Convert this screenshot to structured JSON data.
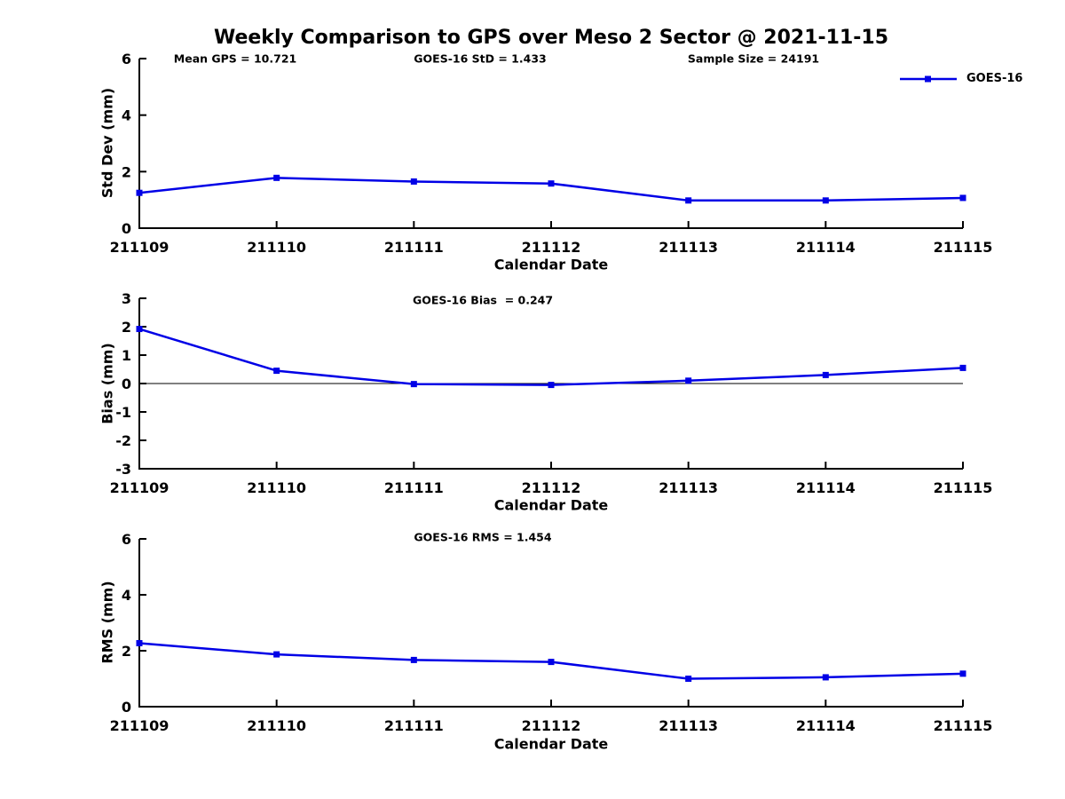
{
  "page_title": "Weekly Comparison to GPS over Meso 2 Sector @ 2021-11-15",
  "colors": {
    "series": "#0000E6",
    "axis": "#000000",
    "text": "#000000",
    "background": "#FFFFFF"
  },
  "legend": {
    "label": "GOES-16",
    "position": "top-right",
    "marker": "square"
  },
  "chart_data": [
    {
      "type": "line",
      "ylabel": "Std Dev (mm)",
      "xlabel": "Calendar Date",
      "ylim": [
        0,
        6
      ],
      "yticks": [
        0,
        2,
        4,
        6
      ],
      "grid": false,
      "zero_line": false,
      "annotations": [
        "Mean GPS = 10.721",
        "GOES-16 StD = 1.433",
        "Sample Size = 24191"
      ],
      "categories": [
        "211109",
        "211110",
        "211111",
        "211112",
        "211113",
        "211114",
        "211115"
      ],
      "series": [
        {
          "name": "GOES-16",
          "marker": "square",
          "values": [
            1.25,
            1.78,
            1.65,
            1.58,
            0.98,
            0.98,
            1.07
          ]
        }
      ]
    },
    {
      "type": "line",
      "ylabel": "Bias (mm)",
      "xlabel": "Calendar Date",
      "ylim": [
        -3,
        3
      ],
      "yticks": [
        -3,
        -2,
        -1,
        0,
        1,
        2,
        3
      ],
      "grid": false,
      "zero_line": true,
      "annotations": [
        "GOES-16 Bias  = 0.247"
      ],
      "categories": [
        "211109",
        "211110",
        "211111",
        "211112",
        "211113",
        "211114",
        "211115"
      ],
      "series": [
        {
          "name": "GOES-16",
          "marker": "square",
          "values": [
            1.92,
            0.45,
            -0.02,
            -0.05,
            0.1,
            0.3,
            0.55
          ]
        }
      ]
    },
    {
      "type": "line",
      "ylabel": "RMS (mm)",
      "xlabel": "Calendar Date",
      "ylim": [
        0,
        6
      ],
      "yticks": [
        0,
        2,
        4,
        6
      ],
      "grid": false,
      "zero_line": false,
      "annotations": [
        "GOES-16 RMS = 1.454"
      ],
      "categories": [
        "211109",
        "211110",
        "211111",
        "211112",
        "211113",
        "211114",
        "211115"
      ],
      "series": [
        {
          "name": "GOES-16",
          "marker": "square",
          "values": [
            2.27,
            1.87,
            1.67,
            1.6,
            1.0,
            1.05,
            1.18
          ]
        }
      ]
    }
  ]
}
